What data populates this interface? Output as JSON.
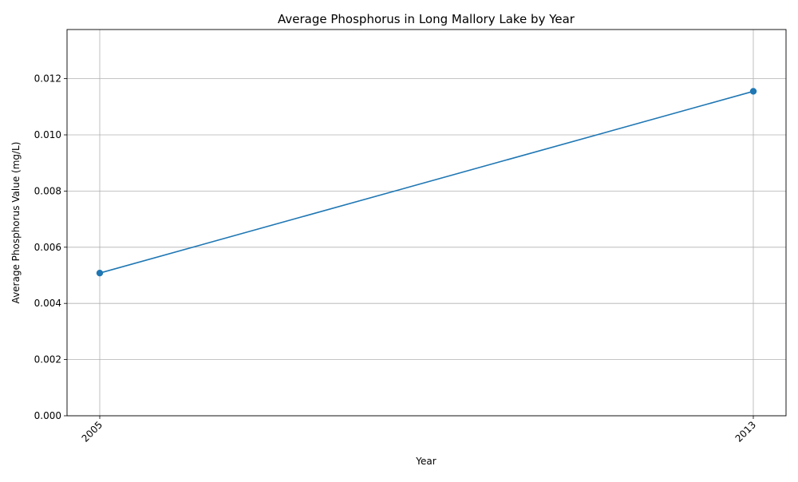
{
  "chart_data": {
    "type": "line",
    "title": "Average Phosphorus in Long Mallory Lake by Year",
    "xlabel": "Year",
    "ylabel": "Average Phosphorus Value (mg/L)",
    "x": [
      "2005",
      "2013"
    ],
    "series": [
      {
        "name": "",
        "values": [
          0.00508,
          0.01155
        ],
        "color": "#1f77b4",
        "marker": "circle"
      }
    ],
    "ylim": [
      0,
      0.01375
    ],
    "yticks": [
      0,
      0.002,
      0.004,
      0.006,
      0.008,
      0.01,
      0.012
    ],
    "ytick_labels": [
      "0.000",
      "0.002",
      "0.004",
      "0.006",
      "0.008",
      "0.010",
      "0.012"
    ],
    "xtick_rotation": 45,
    "grid": true,
    "legend": "none"
  }
}
